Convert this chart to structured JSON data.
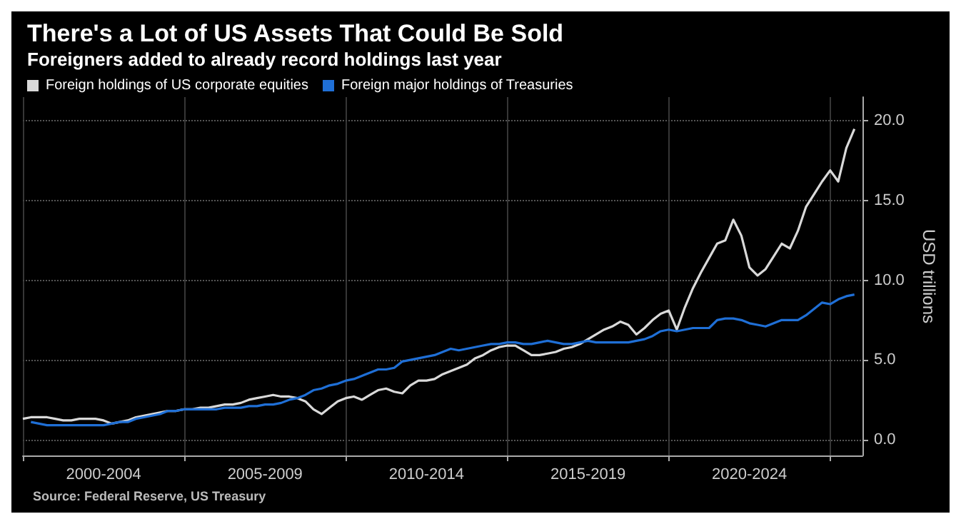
{
  "chart_data": {
    "type": "line",
    "title": "There's a Lot of US Assets That Could Be Sold",
    "subtitle": "Foreigners added to already record holdings last year",
    "ylabel": "USD trillions",
    "annotations": [
      "Source: Federal Reserve, US Treasury"
    ],
    "categories": [
      null,
      null,
      null,
      null,
      null,
      null,
      null,
      null,
      null,
      null,
      "2000-2004",
      null,
      null,
      null,
      null,
      null,
      null,
      null,
      null,
      null,
      null,
      null,
      null,
      null,
      null,
      null,
      null,
      null,
      null,
      null,
      "2005-2009",
      null,
      null,
      null,
      null,
      null,
      null,
      null,
      null,
      null,
      null,
      null,
      null,
      null,
      null,
      null,
      null,
      null,
      null,
      null,
      "2010-2014",
      null,
      null,
      null,
      null,
      null,
      null,
      null,
      null,
      null,
      null,
      null,
      null,
      null,
      null,
      null,
      null,
      null,
      null,
      null,
      "2015-2019",
      null,
      null,
      null,
      null,
      null,
      null,
      null,
      null,
      null,
      null,
      null,
      null,
      null,
      null,
      null,
      null,
      null,
      null,
      null,
      "2020-2024",
      null,
      null,
      null,
      null,
      null,
      null,
      null,
      null,
      null,
      null,
      null,
      null,
      null,
      null
    ],
    "ylim": [
      -1,
      21.5
    ],
    "yticks": [
      {
        "value": 0,
        "label": "0.0"
      },
      {
        "value": 5,
        "label": "5.0"
      },
      {
        "value": 10,
        "label": "10.0"
      },
      {
        "value": 15,
        "label": "15.0"
      },
      {
        "value": 20,
        "label": "20.0"
      }
    ],
    "grid": true,
    "legend": "top left",
    "marker": "none",
    "line_style": "solid",
    "series": [
      {
        "name": "Foreign holdings of US corporate equities",
        "color": "#d9d9d9",
        "values": [
          1.3,
          1.4,
          1.4,
          1.4,
          1.3,
          1.2,
          1.2,
          1.3,
          1.3,
          1.3,
          1.2,
          1.0,
          1.1,
          1.2,
          1.4,
          1.5,
          1.6,
          1.7,
          1.8,
          1.8,
          1.9,
          1.9,
          2.0,
          2.0,
          2.1,
          2.2,
          2.2,
          2.3,
          2.5,
          2.6,
          2.7,
          2.8,
          2.7,
          2.7,
          2.6,
          2.4,
          1.9,
          1.6,
          2.0,
          2.4,
          2.6,
          2.7,
          2.5,
          2.8,
          3.1,
          3.2,
          3.0,
          2.9,
          3.4,
          3.7,
          3.7,
          3.8,
          4.1,
          4.3,
          4.5,
          4.7,
          5.1,
          5.3,
          5.6,
          5.8,
          5.9,
          5.9,
          5.6,
          5.3,
          5.3,
          5.4,
          5.5,
          5.7,
          5.8,
          6.0,
          6.3,
          6.6,
          6.9,
          7.1,
          7.4,
          7.2,
          6.6,
          7.0,
          7.5,
          7.9,
          8.1,
          6.9,
          8.3,
          9.5,
          10.5,
          11.4,
          12.3,
          12.5,
          13.8,
          12.8,
          10.8,
          10.3,
          10.7,
          11.5,
          12.3,
          12.0,
          13.1,
          14.6,
          15.4,
          16.2,
          16.9,
          16.2,
          18.3,
          19.5,
          null
        ]
      },
      {
        "name": "Foreign major holdings of Treasuries",
        "color": "#1f6fd6",
        "values": [
          null,
          1.1,
          1.0,
          0.9,
          0.9,
          0.9,
          0.9,
          0.9,
          0.9,
          0.9,
          0.9,
          1.0,
          1.1,
          1.1,
          1.3,
          1.4,
          1.5,
          1.6,
          1.8,
          1.8,
          1.9,
          1.9,
          1.9,
          1.9,
          1.9,
          2.0,
          2.0,
          2.0,
          2.1,
          2.1,
          2.2,
          2.2,
          2.3,
          2.5,
          2.6,
          2.8,
          3.1,
          3.2,
          3.4,
          3.5,
          3.7,
          3.8,
          4.0,
          4.2,
          4.4,
          4.4,
          4.5,
          4.9,
          5.0,
          5.1,
          5.2,
          5.3,
          5.5,
          5.7,
          5.6,
          5.7,
          5.8,
          5.9,
          6.0,
          6.0,
          6.1,
          6.1,
          6.0,
          6.0,
          6.1,
          6.2,
          6.1,
          6.0,
          6.0,
          6.1,
          6.2,
          6.1,
          6.1,
          6.1,
          6.1,
          6.1,
          6.2,
          6.3,
          6.5,
          6.8,
          6.9,
          6.8,
          6.9,
          7.0,
          7.0,
          7.0,
          7.5,
          7.6,
          7.6,
          7.5,
          7.3,
          7.2,
          7.1,
          7.3,
          7.5,
          7.5,
          7.5,
          7.8,
          8.2,
          8.6,
          8.5,
          8.8,
          9.0,
          9.1,
          null
        ]
      }
    ]
  }
}
